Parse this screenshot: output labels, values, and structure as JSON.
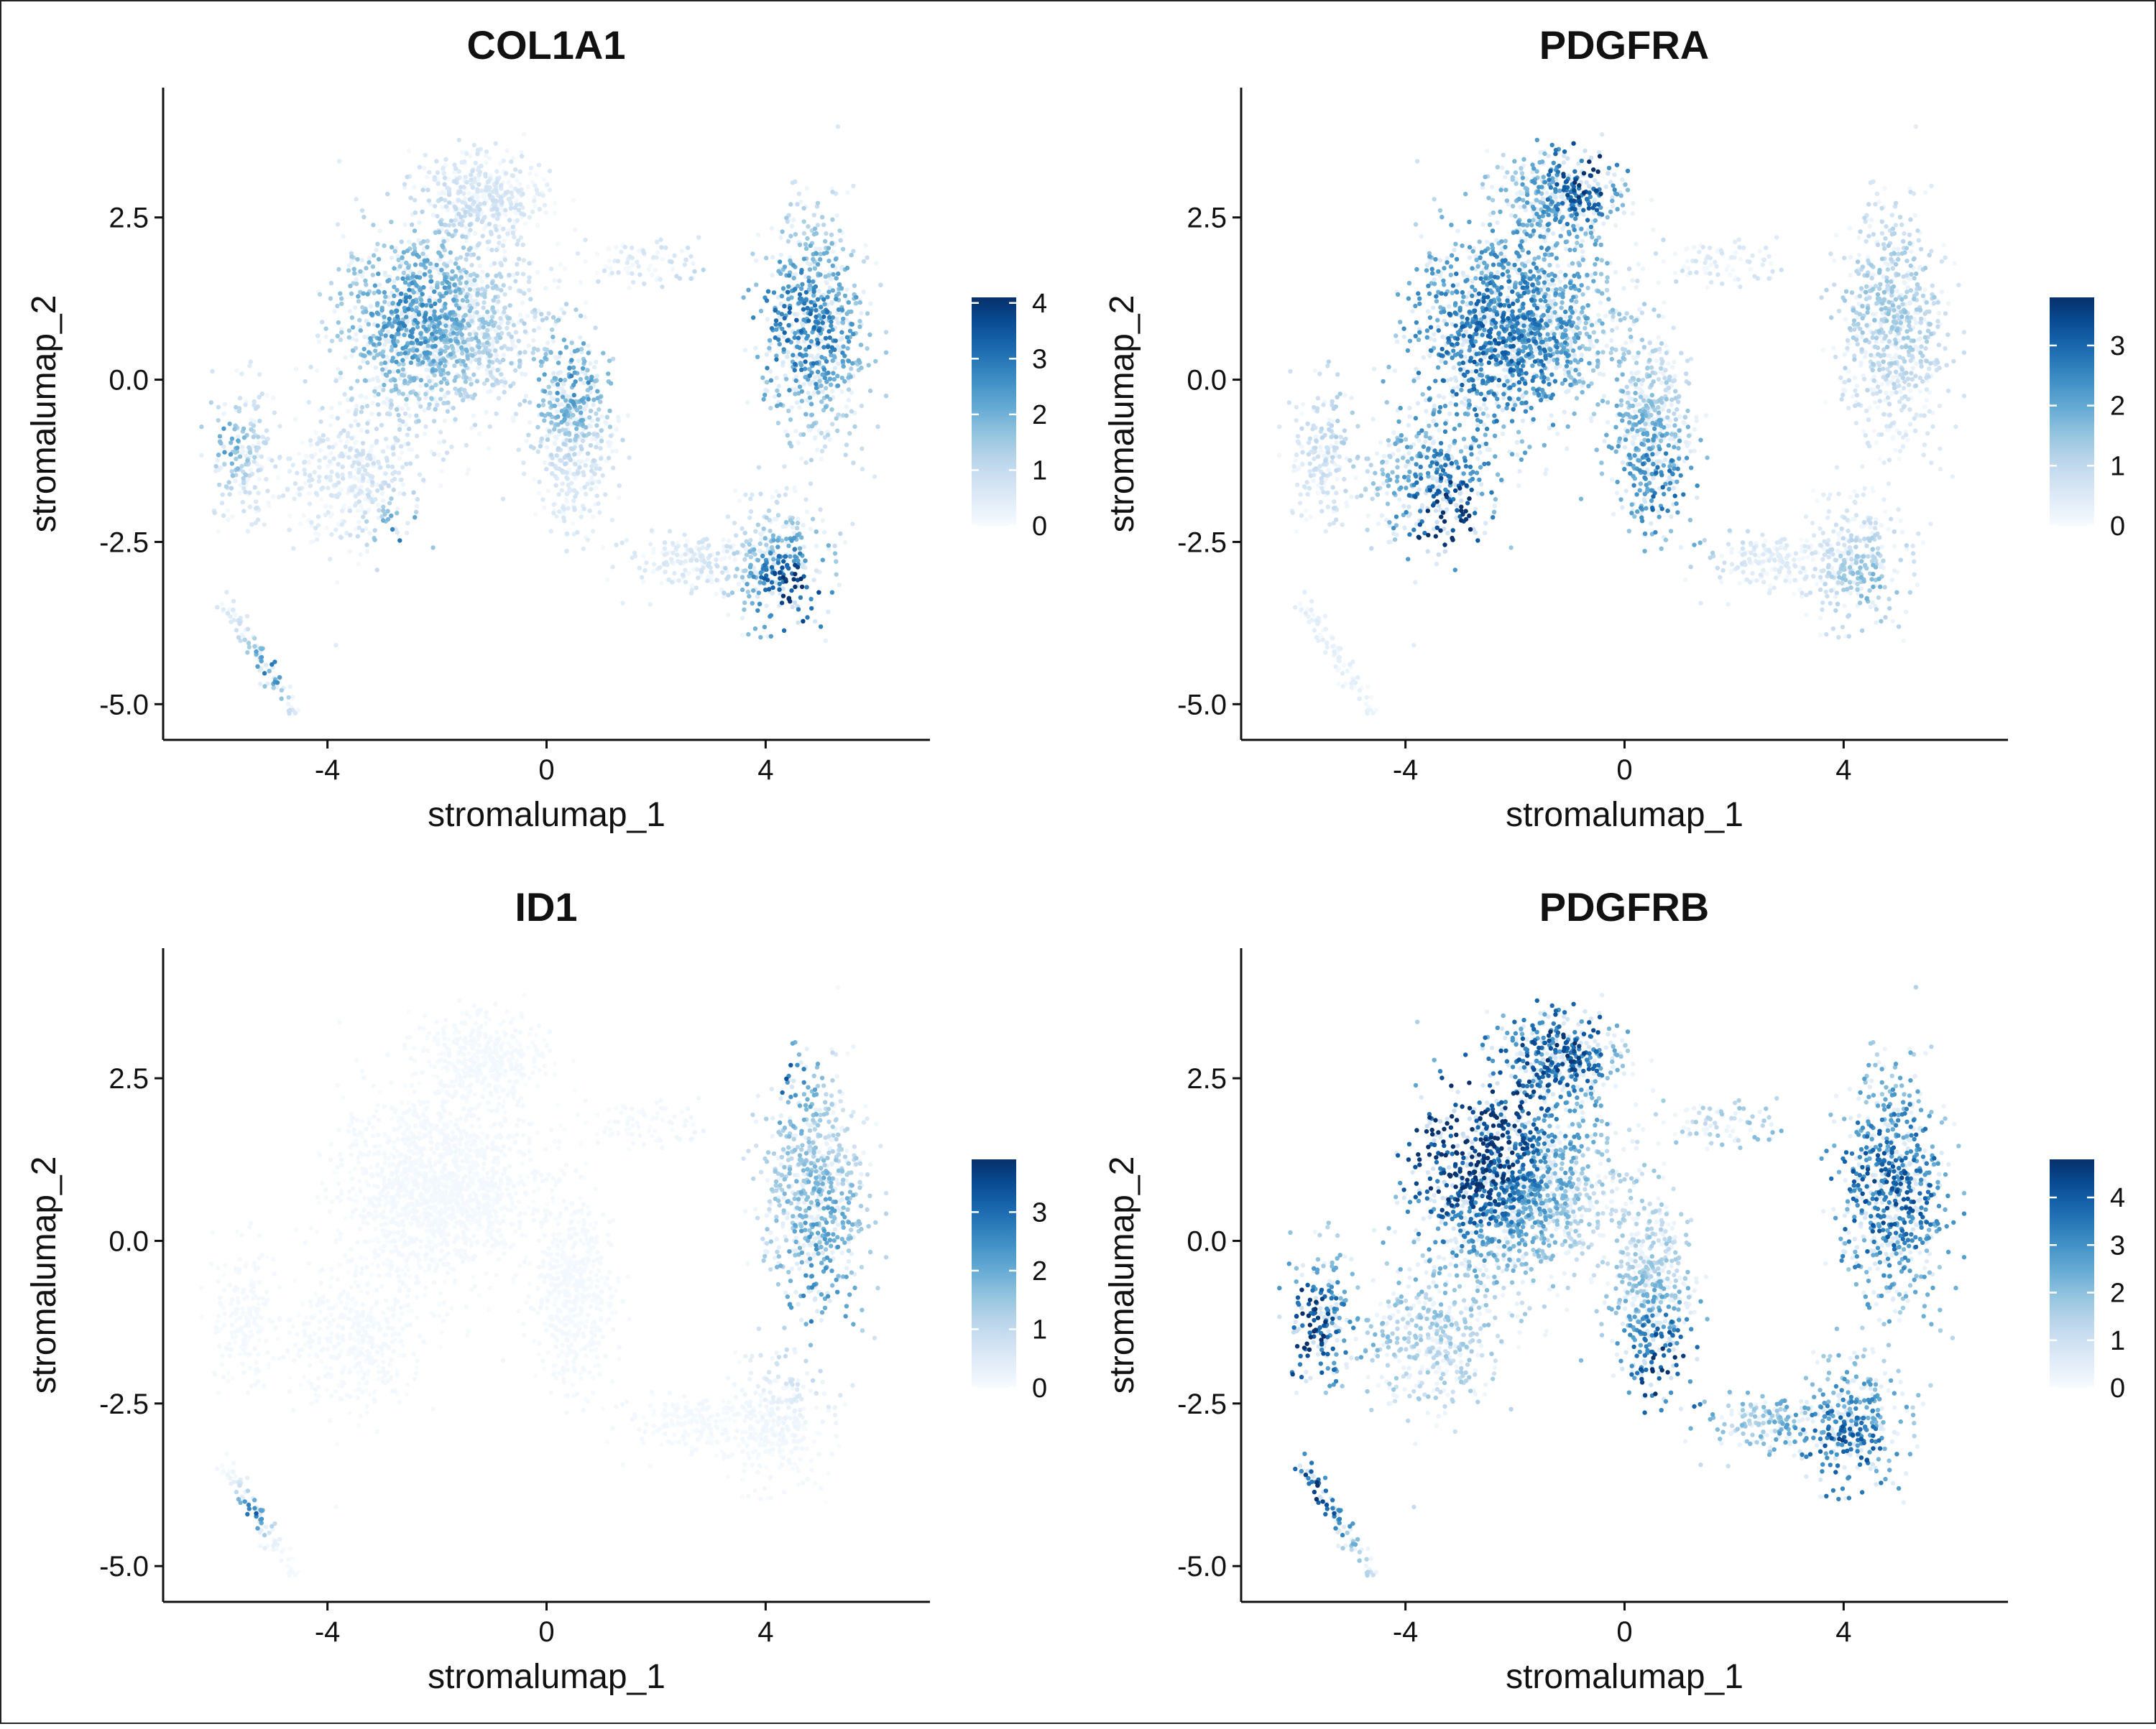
{
  "chart_data": [
    {
      "type": "scatter",
      "title": "COL1A1",
      "xlabel": "stromalumap_1",
      "ylabel": "stromalumap_2",
      "xlim": [
        -7,
        7
      ],
      "ylim": [
        -5.55,
        4.5
      ],
      "xticks": [
        -4,
        0,
        4
      ],
      "xtick_labels": [
        "-4",
        "0",
        "4"
      ],
      "yticks": [
        -5.0,
        -2.5,
        0.0,
        2.5
      ],
      "ytick_labels": [
        "-5.0",
        "-2.5",
        "0.0",
        "2.5"
      ],
      "colorbar": {
        "min": 0,
        "max": 4.1,
        "ticks": [
          0,
          1,
          2,
          3,
          4
        ],
        "tick_labels": [
          "0",
          "1",
          "2",
          "3",
          "4"
        ],
        "low_color": "#f7fbff",
        "high_color": "#08306b"
      },
      "hotspots": [
        {
          "x": 4.5,
          "y": -3.3,
          "r": 0.9,
          "value": 3.0
        },
        {
          "x": 4.6,
          "y": 0.8,
          "r": 1.6,
          "value": 2.0
        },
        {
          "x": -2.5,
          "y": 1.0,
          "r": 1.5,
          "value": 1.6
        },
        {
          "x": -2.6,
          "y": -2.5,
          "r": 0.6,
          "value": 2.0
        },
        {
          "x": 0.5,
          "y": 0.0,
          "r": 1.0,
          "value": 1.5
        },
        {
          "x": -5.0,
          "y": -4.4,
          "r": 0.6,
          "value": 1.8
        },
        {
          "x": -6.0,
          "y": -1.0,
          "r": 0.7,
          "value": 1.4
        }
      ],
      "base_level": 0.55
    },
    {
      "type": "scatter",
      "title": "PDGFRA",
      "xlabel": "stromalumap_1",
      "ylabel": "stromalumap_2",
      "xlim": [
        -7,
        7
      ],
      "ylim": [
        -5.55,
        4.5
      ],
      "xticks": [
        -4,
        0,
        4
      ],
      "xtick_labels": [
        "-4",
        "0",
        "4"
      ],
      "yticks": [
        -5.0,
        -2.5,
        0.0,
        2.5
      ],
      "ytick_labels": [
        "-5.0",
        "-2.5",
        "0.0",
        "2.5"
      ],
      "colorbar": {
        "min": 0,
        "max": 3.8,
        "ticks": [
          0,
          1,
          2,
          3
        ],
        "tick_labels": [
          "0",
          "1",
          "2",
          "3"
        ],
        "low_color": "#f7fbff",
        "high_color": "#08306b"
      },
      "hotspots": [
        {
          "x": -2.5,
          "y": 0.5,
          "r": 2.8,
          "value": 2.1
        },
        {
          "x": -3.3,
          "y": -2.4,
          "r": 0.9,
          "value": 2.8
        },
        {
          "x": -0.6,
          "y": 3.4,
          "r": 1.0,
          "value": 2.4
        },
        {
          "x": 0.8,
          "y": -1.8,
          "r": 1.2,
          "value": 1.8
        },
        {
          "x": 4.8,
          "y": 1.2,
          "r": 1.8,
          "value": 0.9
        },
        {
          "x": 4.5,
          "y": -3.2,
          "r": 1.0,
          "value": 1.1
        }
      ],
      "base_level": 0.3
    },
    {
      "type": "scatter",
      "title": "ID1",
      "xlabel": "stromalumap_1",
      "ylabel": "stromalumap_2",
      "xlim": [
        -7,
        7
      ],
      "ylim": [
        -5.55,
        4.5
      ],
      "xticks": [
        -4,
        0,
        4
      ],
      "xtick_labels": [
        "-4",
        "0",
        "4"
      ],
      "yticks": [
        -5.0,
        -2.5,
        0.0,
        2.5
      ],
      "ytick_labels": [
        "-5.0",
        "-2.5",
        "0.0",
        "2.5"
      ],
      "colorbar": {
        "min": 0,
        "max": 3.9,
        "ticks": [
          0,
          1,
          2,
          3
        ],
        "tick_labels": [
          "0",
          "1",
          "2",
          "3"
        ],
        "low_color": "#f7fbff",
        "high_color": "#08306b"
      },
      "hotspots": [
        {
          "x": 4.3,
          "y": 2.6,
          "r": 0.8,
          "value": 2.4
        },
        {
          "x": 5.0,
          "y": 0.5,
          "r": 1.5,
          "value": 1.5
        },
        {
          "x": 5.0,
          "y": -1.2,
          "r": 1.0,
          "value": 1.6
        },
        {
          "x": -5.4,
          "y": -4.2,
          "r": 0.4,
          "value": 2.6
        }
      ],
      "base_level": 0.08
    },
    {
      "type": "scatter",
      "title": "PDGFRB",
      "xlabel": "stromalumap_1",
      "ylabel": "stromalumap_2",
      "xlim": [
        -7,
        7
      ],
      "ylim": [
        -5.55,
        4.5
      ],
      "xticks": [
        -4,
        0,
        4
      ],
      "xtick_labels": [
        "-4",
        "0",
        "4"
      ],
      "yticks": [
        -5.0,
        -2.5,
        0.0,
        2.5
      ],
      "ytick_labels": [
        "-5.0",
        "-2.5",
        "0.0",
        "2.5"
      ],
      "colorbar": {
        "min": 0,
        "max": 4.8,
        "ticks": [
          0,
          1,
          2,
          3,
          4
        ],
        "tick_labels": [
          "0",
          "1",
          "2",
          "3",
          "4"
        ],
        "low_color": "#f7fbff",
        "high_color": "#08306b"
      },
      "hotspots": [
        {
          "x": -3.0,
          "y": 1.5,
          "r": 1.6,
          "value": 3.2
        },
        {
          "x": -6.0,
          "y": -1.4,
          "r": 1.0,
          "value": 3.2
        },
        {
          "x": -5.6,
          "y": -3.9,
          "r": 0.8,
          "value": 2.6
        },
        {
          "x": 0.7,
          "y": -2.0,
          "r": 1.0,
          "value": 2.8
        },
        {
          "x": 4.8,
          "y": 0.8,
          "r": 1.8,
          "value": 2.0
        },
        {
          "x": 4.0,
          "y": -3.3,
          "r": 1.2,
          "value": 2.0
        },
        {
          "x": -1.0,
          "y": 3.2,
          "r": 1.2,
          "value": 2.0
        }
      ],
      "base_level": 1.4
    }
  ]
}
